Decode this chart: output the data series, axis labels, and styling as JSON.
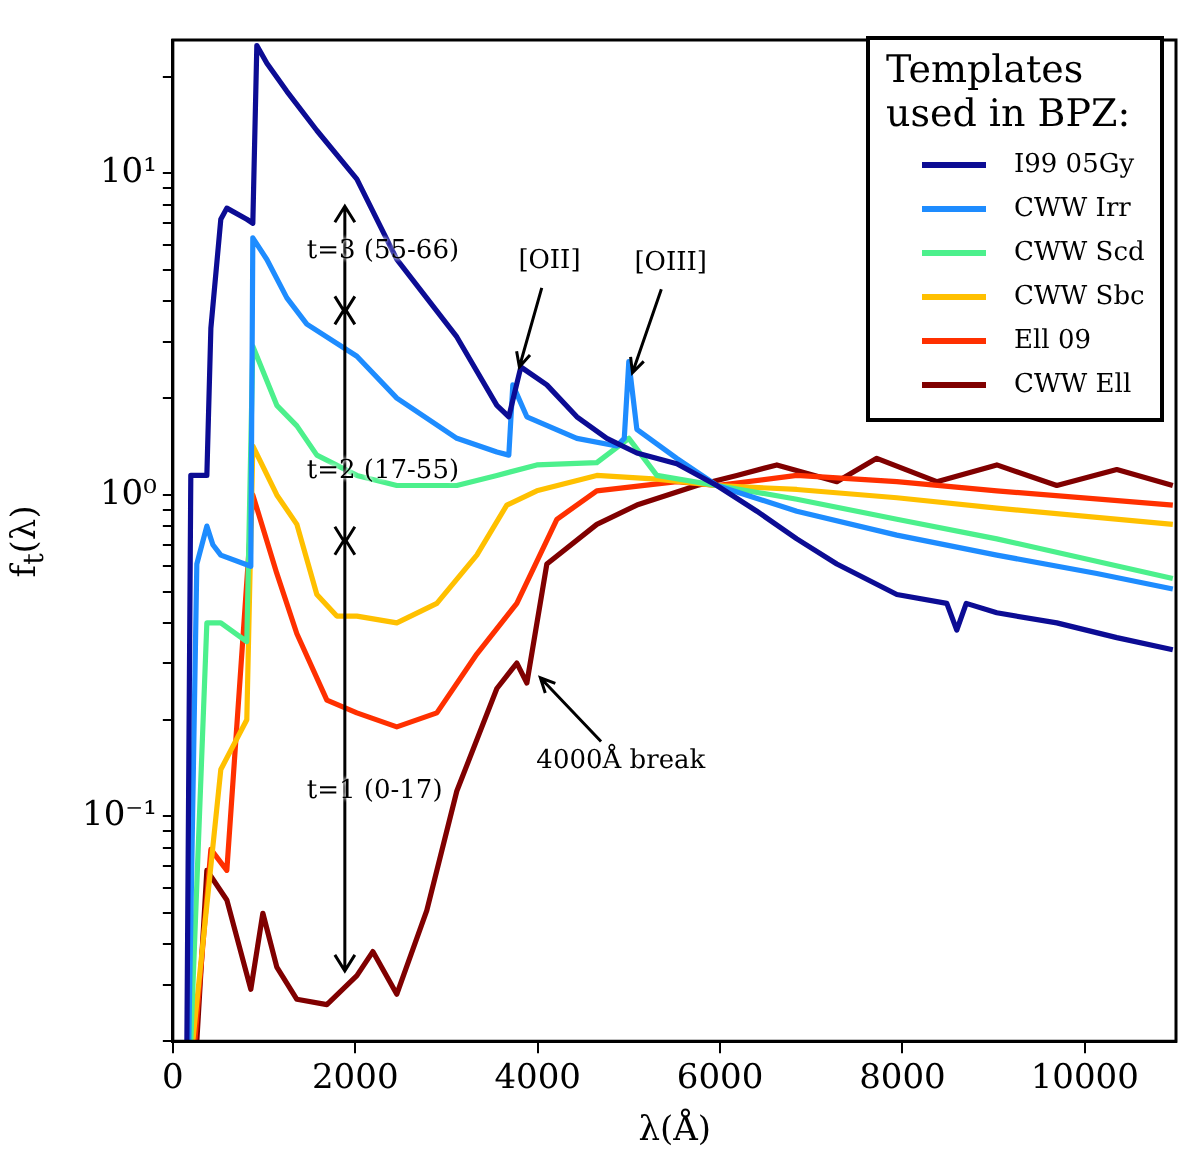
{
  "chart_data": {
    "type": "line",
    "xlabel": "λ(Å)",
    "ylabel": "f$_{t}$(λ)",
    "legend_title": "Templates used in BPZ:",
    "legend": "top right",
    "grid": false,
    "marker": "none",
    "line_style": "solid",
    "log": "y",
    "xlim": [
      0,
      11000
    ],
    "xticks": [
      0,
      2000,
      4000,
      6000,
      8000,
      10000
    ],
    "ylim": [
      0.02,
      26
    ],
    "yticks": [
      {
        "value": 0.02,
        "label": null
      },
      {
        "value": 0.03,
        "label": null
      },
      {
        "value": 0.04,
        "label": null
      },
      {
        "value": 0.05,
        "label": null
      },
      {
        "value": 0.06,
        "label": null
      },
      {
        "value": 0.07,
        "label": null
      },
      {
        "value": 0.08,
        "label": null
      },
      {
        "value": 0.09,
        "label": null
      },
      {
        "value": 0.1,
        "label": "10⁻¹"
      },
      {
        "value": 0.2,
        "label": null
      },
      {
        "value": 0.3,
        "label": null
      },
      {
        "value": 0.4,
        "label": null
      },
      {
        "value": 0.5,
        "label": null
      },
      {
        "value": 0.6,
        "label": null
      },
      {
        "value": 0.7,
        "label": null
      },
      {
        "value": 0.8,
        "label": null
      },
      {
        "value": 0.9,
        "label": null
      },
      {
        "value": 1,
        "label": "10⁰"
      },
      {
        "value": 2,
        "label": null
      },
      {
        "value": 3,
        "label": null
      },
      {
        "value": 4,
        "label": null
      },
      {
        "value": 5,
        "label": null
      },
      {
        "value": 6,
        "label": null
      },
      {
        "value": 7,
        "label": null
      },
      {
        "value": 8,
        "label": null
      },
      {
        "value": 9,
        "label": null
      },
      {
        "value": 10,
        "label": "10¹"
      },
      {
        "value": 20,
        "label": null
      }
    ],
    "series": [
      {
        "name": "I99 05Gy",
        "color": "#0c0c94",
        "x": [
          154,
          197,
          373,
          417,
          526,
          592,
          811,
          877,
          921,
          1031,
          1250,
          1579,
          2018,
          2456,
          3114,
          3553,
          3684,
          3816,
          4101,
          4430,
          4759,
          5088,
          5526,
          5965,
          6404,
          6842,
          7281,
          7939,
          8487,
          8596,
          8700,
          9035,
          9693,
          10351,
          10965
        ],
        "values": [
          0.02,
          1.15,
          1.15,
          3.3,
          7.2,
          7.8,
          7.2,
          7.0,
          25,
          22,
          18,
          13.6,
          9.6,
          5.4,
          3.1,
          1.9,
          1.75,
          2.5,
          2.2,
          1.75,
          1.5,
          1.35,
          1.25,
          1.07,
          0.89,
          0.73,
          0.61,
          0.49,
          0.46,
          0.38,
          0.46,
          0.43,
          0.4,
          0.36,
          0.33
        ]
      },
      {
        "name": "CWW Irr",
        "color": "#1e8cff",
        "x": [
          175,
          263,
          373,
          439,
          526,
          855,
          877,
          1031,
          1250,
          1469,
          2018,
          2456,
          3114,
          3553,
          3684,
          3728,
          3882,
          4430,
          4868,
          4950,
          5000,
          5088,
          5526,
          5965,
          6842,
          7939,
          9035,
          10132,
          10965
        ],
        "values": [
          0.02,
          0.61,
          0.8,
          0.7,
          0.65,
          0.6,
          6.3,
          5.4,
          4.1,
          3.4,
          2.7,
          2.0,
          1.5,
          1.36,
          1.33,
          2.2,
          1.75,
          1.5,
          1.42,
          1.5,
          2.6,
          1.6,
          1.3,
          1.07,
          0.89,
          0.75,
          0.65,
          0.57,
          0.51
        ]
      },
      {
        "name": "CWW Scd",
        "color": "#4cf08c",
        "x": [
          197,
          373,
          526,
          811,
          877,
          1140,
          1360,
          1579,
          2018,
          2456,
          3114,
          3553,
          3991,
          4649,
          5000,
          5307,
          5965,
          6842,
          7939,
          9035,
          10965
        ],
        "values": [
          0.02,
          0.4,
          0.4,
          0.35,
          2.9,
          1.9,
          1.64,
          1.33,
          1.15,
          1.07,
          1.07,
          1.15,
          1.24,
          1.26,
          1.5,
          1.15,
          1.07,
          0.97,
          0.84,
          0.73,
          0.55
        ]
      },
      {
        "name": "CWW Sbc",
        "color": "#ffc000",
        "x": [
          219,
          526,
          811,
          877,
          1140,
          1360,
          1579,
          1798,
          2018,
          2456,
          2895,
          3333,
          3662,
          3991,
          4649,
          5307,
          5965,
          6842,
          7939,
          9035,
          10965
        ],
        "values": [
          0.02,
          0.14,
          0.2,
          1.42,
          1.0,
          0.81,
          0.49,
          0.42,
          0.42,
          0.4,
          0.46,
          0.65,
          0.93,
          1.03,
          1.15,
          1.12,
          1.07,
          1.04,
          0.98,
          0.91,
          0.81
        ]
      },
      {
        "name": "Ell 09",
        "color": "#ff3000",
        "x": [
          241,
          417,
          592,
          877,
          1140,
          1360,
          1689,
          2018,
          2456,
          2895,
          3333,
          3772,
          4211,
          4649,
          5526,
          5965,
          6842,
          7939,
          9035,
          10965
        ],
        "values": [
          0.02,
          0.079,
          0.068,
          1.0,
          0.57,
          0.37,
          0.23,
          0.21,
          0.19,
          0.21,
          0.32,
          0.46,
          0.84,
          1.03,
          1.1,
          1.07,
          1.15,
          1.1,
          1.03,
          0.93
        ]
      },
      {
        "name": "CWW Ell",
        "color": "#800000",
        "x": [
          263,
          373,
          592,
          855,
          987,
          1140,
          1360,
          1689,
          2018,
          2193,
          2456,
          2785,
          3114,
          3553,
          3772,
          3882,
          4101,
          4649,
          5088,
          5746,
          6184,
          6623,
          7281,
          7719,
          8377,
          9035,
          9693,
          10351,
          10965
        ],
        "values": [
          0.02,
          0.068,
          0.055,
          0.029,
          0.05,
          0.034,
          0.027,
          0.026,
          0.032,
          0.038,
          0.028,
          0.051,
          0.12,
          0.25,
          0.3,
          0.26,
          0.61,
          0.81,
          0.93,
          1.07,
          1.15,
          1.24,
          1.1,
          1.3,
          1.1,
          1.24,
          1.07,
          1.2,
          1.07
        ]
      }
    ],
    "annotations": [
      "t=3 (55-66)",
      "t=2 (17-55)",
      "t=1 (0-17)",
      {
        "text": "[OII]",
        "x": 3800,
        "y": 2.5
      },
      {
        "text": "[OIII]",
        "x": 5040,
        "y": 2.4
      },
      {
        "text": "4000Å break",
        "x": 4030,
        "y": 0.27
      }
    ]
  }
}
